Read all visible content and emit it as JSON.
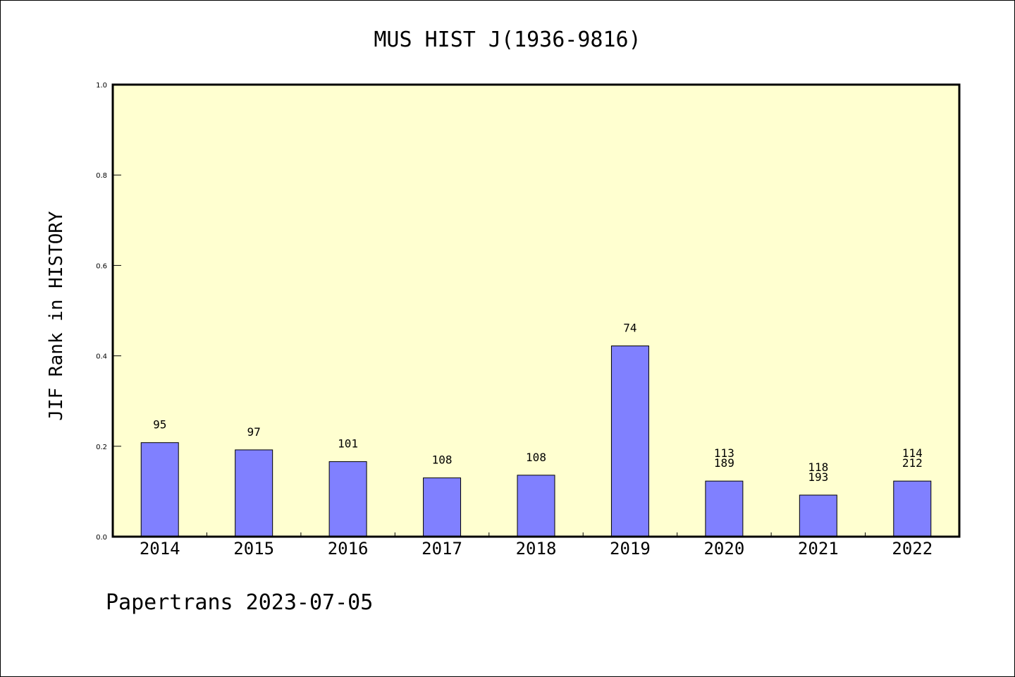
{
  "chart_data": {
    "type": "bar",
    "title": "MUS HIST J(1936-9816)",
    "xlabel": "",
    "ylabel": "JIF Rank in HISTORY",
    "ylim": [
      0,
      1.0
    ],
    "yticks": [
      "0.0",
      "0.2",
      "0.4",
      "0.6",
      "0.8",
      "1.0"
    ],
    "categories": [
      "2014",
      "2015",
      "2016",
      "2017",
      "2018",
      "2019",
      "2020",
      "2021",
      "2022"
    ],
    "values": [
      0.208,
      0.192,
      0.166,
      0.13,
      0.136,
      0.422,
      0.123,
      0.092,
      0.123
    ],
    "bar_labels": [
      [
        "95"
      ],
      [
        "97"
      ],
      [
        "101"
      ],
      [
        "108"
      ],
      [
        "108"
      ],
      [
        "74"
      ],
      [
        "113",
        "189"
      ],
      [
        "118",
        "193"
      ],
      [
        "114",
        "212"
      ]
    ],
    "bar_color": "#8080ff",
    "plot_background": "#ffffd0",
    "grid": false,
    "footer": "Papertrans 2023-07-05"
  }
}
